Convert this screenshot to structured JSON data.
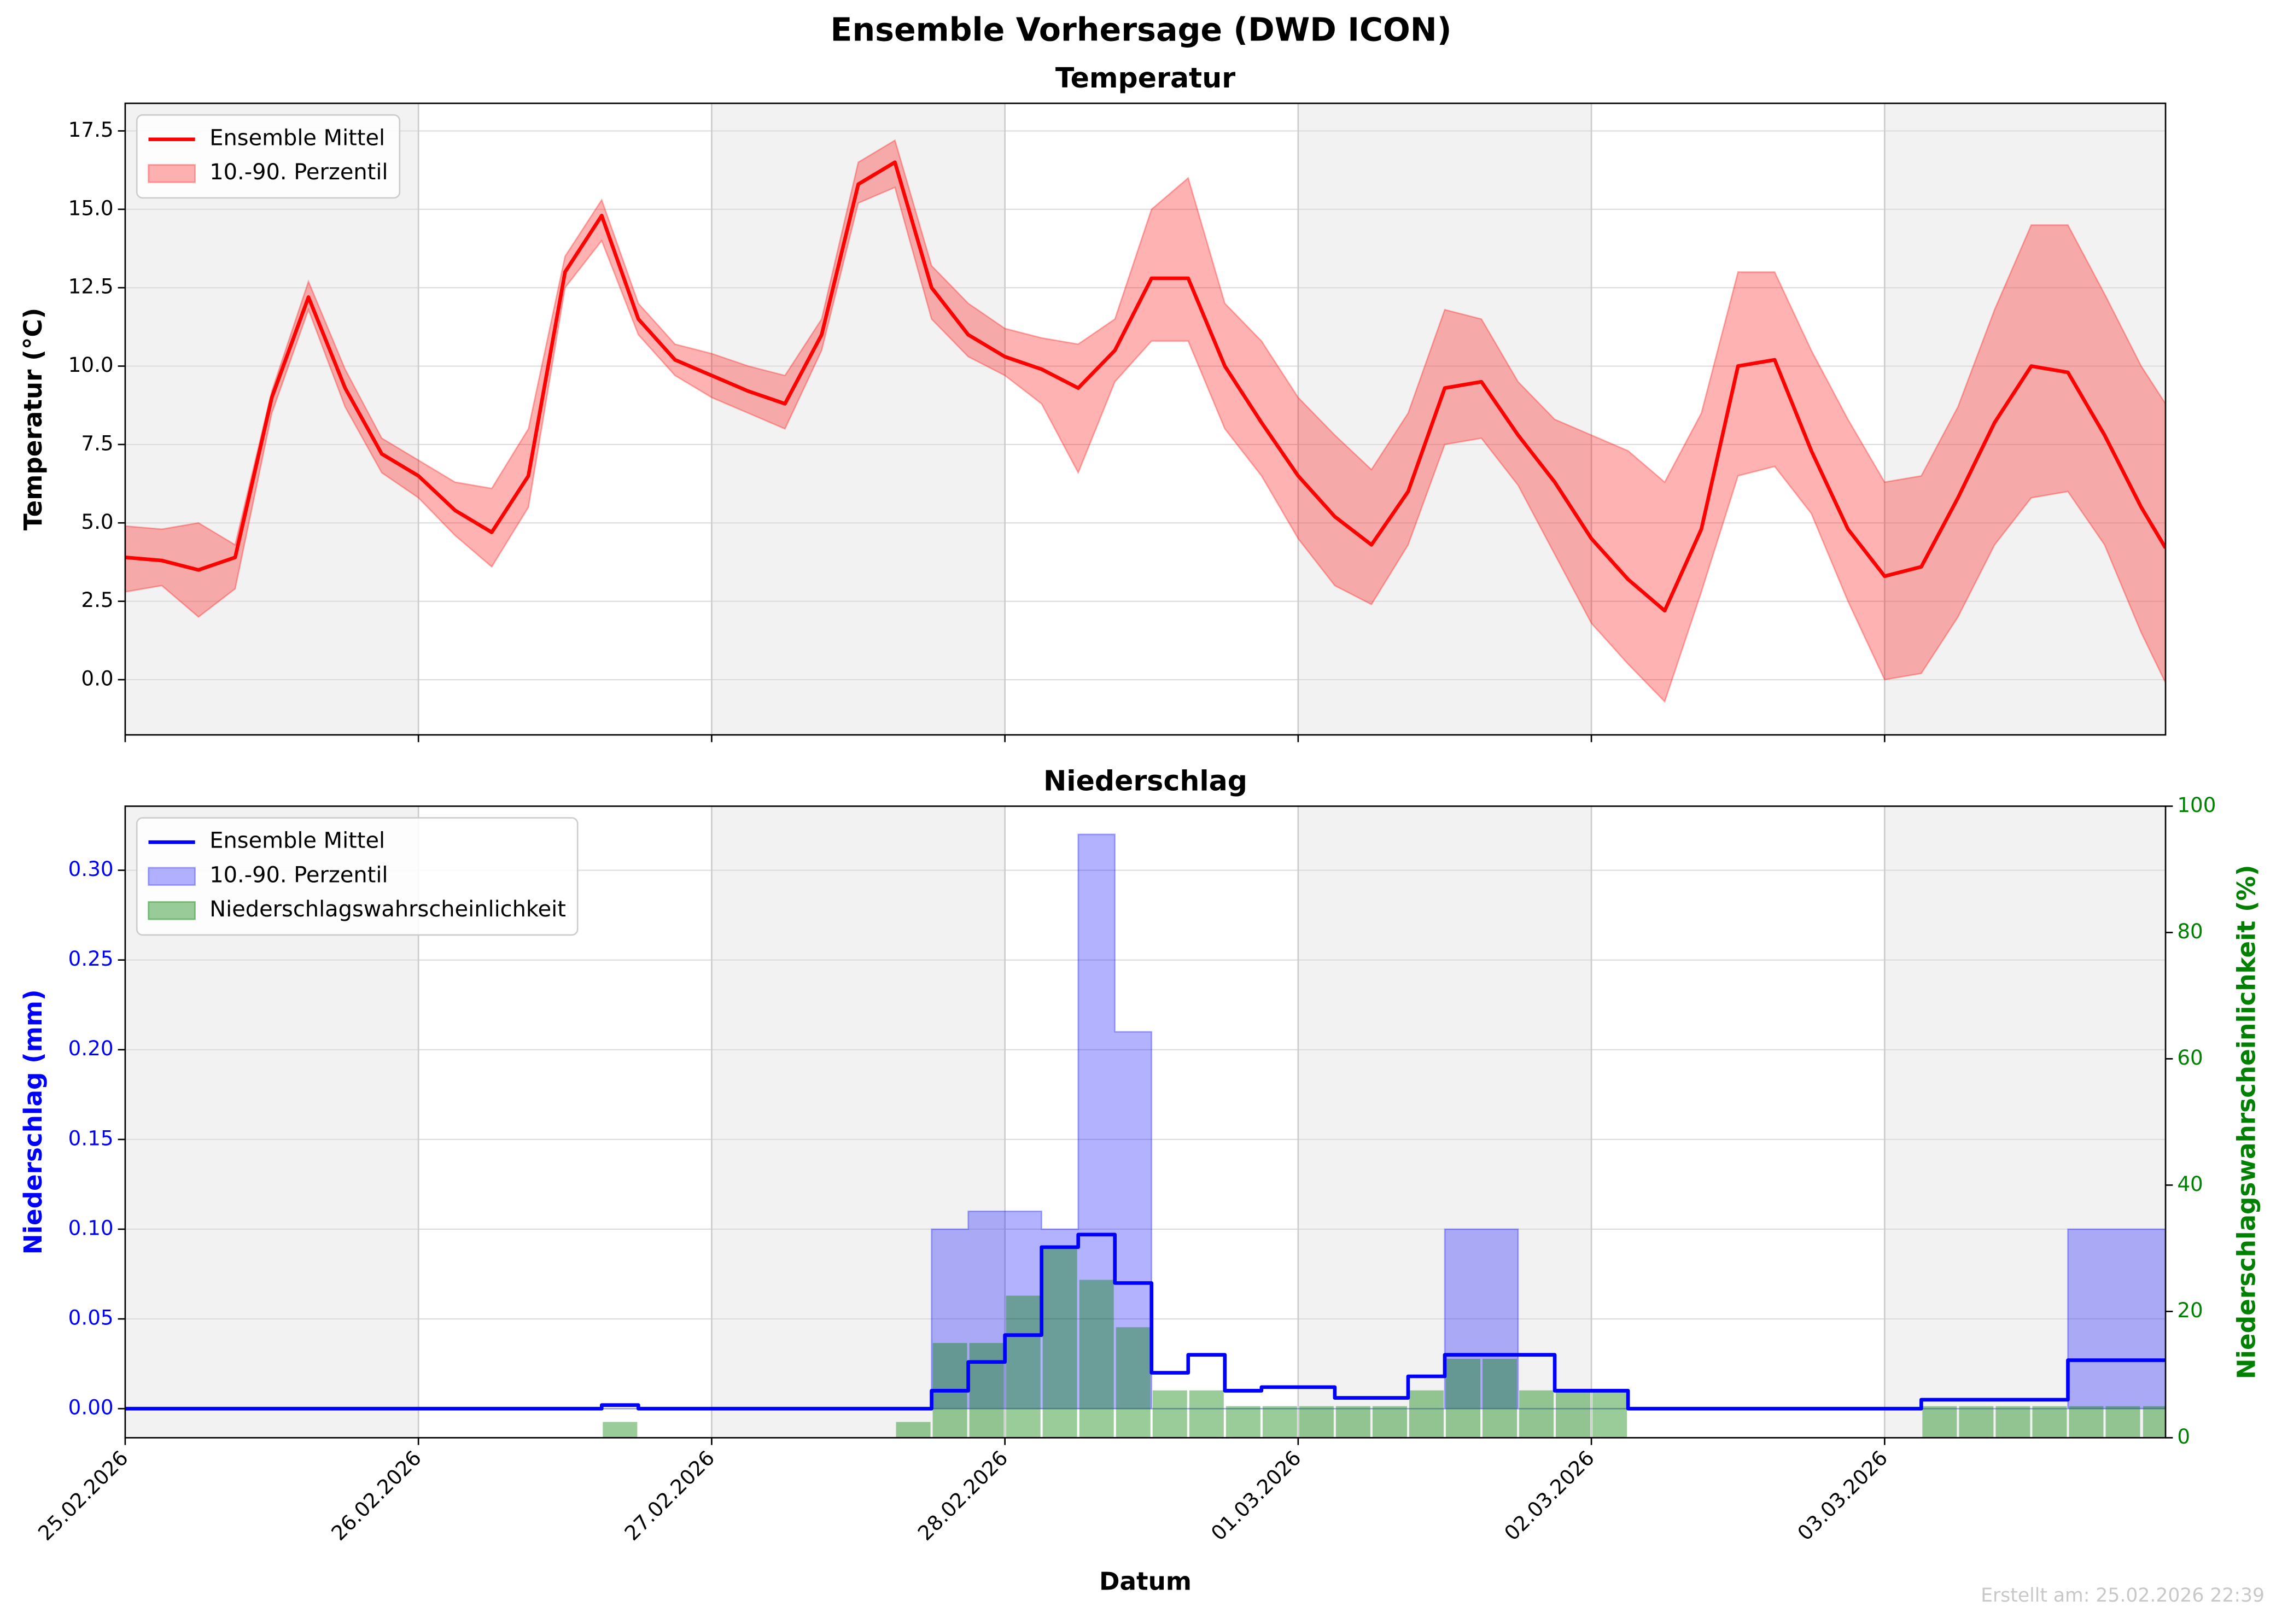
{
  "title": "Ensemble Vorhersage (DWD ICON)",
  "footer": "Erstellt am: 25.02.2026 22:39",
  "chart_data": [
    {
      "type": "line",
      "title": "Temperatur",
      "ylabel": "Temperatur (°C)",
      "legend": "upper left",
      "x": [
        0,
        0.125,
        0.25,
        0.375,
        0.5,
        0.625,
        0.75,
        0.875,
        1,
        1.125,
        1.25,
        1.375,
        1.5,
        1.625,
        1.75,
        1.875,
        2,
        2.125,
        2.25,
        2.375,
        2.5,
        2.625,
        2.75,
        2.875,
        3,
        3.125,
        3.25,
        3.375,
        3.5,
        3.625,
        3.75,
        3.875,
        4,
        4.125,
        4.25,
        4.375,
        4.5,
        4.625,
        4.75,
        4.875,
        5,
        5.125,
        5.25,
        5.375,
        5.5,
        5.625,
        5.75,
        5.875,
        6,
        6.125,
        6.25,
        6.375,
        6.5,
        6.625,
        6.75,
        6.875,
        6.958
      ],
      "xlim": [
        0,
        6.958
      ],
      "xticks": [
        {
          "value": 0,
          "label": "25.02.2026"
        },
        {
          "value": 1,
          "label": "26.02.2026"
        },
        {
          "value": 2,
          "label": "27.02.2026"
        },
        {
          "value": 3,
          "label": "28.02.2026"
        },
        {
          "value": 4,
          "label": "01.03.2026"
        },
        {
          "value": 5,
          "label": "02.03.2026"
        },
        {
          "value": 6,
          "label": "03.03.2026"
        }
      ],
      "show_xtick_labels": false,
      "ylim": [
        -1.76,
        18.38
      ],
      "yticks": [
        {
          "value": 0,
          "label": "0.0"
        },
        2.5,
        {
          "value": 5,
          "label": "5.0"
        },
        7.5,
        {
          "value": 10,
          "label": "10.0"
        },
        12.5,
        {
          "value": 15,
          "label": "15.0"
        },
        17.5
      ],
      "grid": true,
      "series": [
        {
          "name": "Ensemble Mittel",
          "kind": "line",
          "color": "#ff0000",
          "values": [
            3.9,
            3.8,
            3.5,
            3.9,
            9.0,
            12.2,
            9.3,
            7.2,
            6.5,
            5.4,
            4.7,
            6.5,
            13.0,
            14.8,
            11.5,
            10.2,
            9.7,
            9.2,
            8.8,
            11.0,
            15.8,
            16.5,
            12.5,
            11.0,
            10.3,
            9.9,
            9.3,
            10.5,
            12.8,
            12.8,
            10.0,
            8.2,
            6.5,
            5.2,
            4.3,
            6.0,
            9.3,
            9.5,
            7.8,
            6.3,
            4.5,
            3.2,
            2.2,
            4.8,
            10.0,
            10.2,
            7.3,
            4.8,
            3.3,
            3.6,
            5.8,
            8.2,
            10.0,
            9.8,
            7.8,
            5.5,
            4.2
          ]
        },
        {
          "name": "10.-90. Perzentil",
          "kind": "band",
          "color": "#ff0000",
          "alpha": 0.3,
          "lower": [
            2.8,
            3.0,
            2.0,
            2.9,
            8.5,
            11.8,
            8.7,
            6.6,
            5.8,
            4.6,
            3.6,
            5.5,
            12.5,
            14.0,
            11.0,
            9.7,
            9.0,
            8.5,
            8.0,
            10.5,
            15.2,
            15.7,
            11.5,
            10.3,
            9.7,
            8.8,
            6.6,
            9.5,
            10.8,
            10.8,
            8.0,
            6.5,
            4.5,
            3.0,
            2.4,
            4.3,
            7.5,
            7.7,
            6.2,
            4.0,
            1.8,
            0.5,
            -0.7,
            2.8,
            6.5,
            6.8,
            5.3,
            2.5,
            0.0,
            0.2,
            2.0,
            4.3,
            5.8,
            6.0,
            4.3,
            1.5,
            -0.1
          ],
          "upper": [
            4.9,
            4.8,
            5.0,
            4.3,
            9.2,
            12.7,
            9.9,
            7.7,
            7.0,
            6.3,
            6.1,
            8.0,
            13.5,
            15.3,
            12.0,
            10.7,
            10.4,
            10.0,
            9.7,
            11.5,
            16.5,
            17.2,
            13.2,
            12.0,
            11.2,
            10.9,
            10.7,
            11.5,
            15.0,
            16.0,
            12.0,
            10.8,
            9.0,
            7.8,
            6.7,
            8.5,
            11.8,
            11.5,
            9.5,
            8.3,
            7.8,
            7.3,
            6.3,
            8.5,
            13.0,
            13.0,
            10.5,
            8.3,
            6.3,
            6.5,
            8.7,
            11.8,
            14.5,
            14.5,
            12.3,
            10.0,
            8.8
          ]
        }
      ]
    },
    {
      "type": "step",
      "title": "Niederschlag",
      "ylabel": "Niederschlag (mm)",
      "y2label": "Niederschlagswahrscheinlichkeit (%)",
      "xlabel": "Datum",
      "legend": "upper left",
      "ycolor": "#0000ff",
      "y2color": "#008000",
      "x": [
        0,
        0.125,
        0.25,
        0.375,
        0.5,
        0.625,
        0.75,
        0.875,
        1,
        1.125,
        1.25,
        1.375,
        1.5,
        1.625,
        1.75,
        1.875,
        2,
        2.125,
        2.25,
        2.375,
        2.5,
        2.625,
        2.75,
        2.875,
        3,
        3.125,
        3.25,
        3.375,
        3.5,
        3.625,
        3.75,
        3.875,
        4,
        4.125,
        4.25,
        4.375,
        4.5,
        4.625,
        4.75,
        4.875,
        5,
        5.125,
        5.25,
        5.375,
        5.5,
        5.625,
        5.75,
        5.875,
        6,
        6.125,
        6.25,
        6.375,
        6.5,
        6.625,
        6.75,
        6.875
      ],
      "xlim": [
        0,
        6.958
      ],
      "xticks": [
        {
          "value": 0,
          "label": "25.02.2026"
        },
        {
          "value": 1,
          "label": "26.02.2026"
        },
        {
          "value": 2,
          "label": "27.02.2026"
        },
        {
          "value": 3,
          "label": "28.02.2026"
        },
        {
          "value": 4,
          "label": "01.03.2026"
        },
        {
          "value": 5,
          "label": "02.03.2026"
        },
        {
          "value": 6,
          "label": "03.03.2026"
        }
      ],
      "show_xtick_labels": true,
      "ylim": [
        -0.0162,
        0.3357
      ],
      "yticks": [
        {
          "value": 0,
          "label": "0.00"
        },
        {
          "value": 0.05,
          "label": "0.05"
        },
        {
          "value": 0.1,
          "label": "0.10"
        },
        {
          "value": 0.15,
          "label": "0.15"
        },
        {
          "value": 0.2,
          "label": "0.20"
        },
        {
          "value": 0.25,
          "label": "0.25"
        },
        {
          "value": 0.3,
          "label": "0.30"
        }
      ],
      "y2lim": [
        0,
        100
      ],
      "y2ticks": [
        0,
        20,
        40,
        60,
        80,
        100
      ],
      "grid": true,
      "series": [
        {
          "name": "Ensemble Mittel",
          "kind": "step",
          "color": "#0000ff",
          "values": [
            0,
            0,
            0,
            0,
            0,
            0,
            0,
            0,
            0,
            0,
            0,
            0,
            0,
            0.002,
            0,
            0,
            0,
            0,
            0,
            0,
            0,
            0,
            0.01,
            0.026,
            0.041,
            0.09,
            0.097,
            0.07,
            0.02,
            0.03,
            0.01,
            0.012,
            0.012,
            0.006,
            0.006,
            0.018,
            0.03,
            0.03,
            0.03,
            0.01,
            0.01,
            0,
            0,
            0,
            0,
            0,
            0,
            0,
            0,
            0.005,
            0.005,
            0.005,
            0.005,
            0.027,
            0.027,
            0.027
          ]
        },
        {
          "name": "10.-90. Perzentil",
          "kind": "stepband",
          "color": "#0000ff",
          "alpha": 0.3,
          "lower": [
            0,
            0,
            0,
            0,
            0,
            0,
            0,
            0,
            0,
            0,
            0,
            0,
            0,
            0,
            0,
            0,
            0,
            0,
            0,
            0,
            0,
            0,
            0,
            0,
            0,
            0,
            0,
            0,
            0,
            0,
            0,
            0,
            0,
            0,
            0,
            0,
            0,
            0,
            0,
            0,
            0,
            0,
            0,
            0,
            0,
            0,
            0,
            0,
            0,
            0,
            0,
            0,
            0,
            0,
            0,
            0
          ],
          "upper": [
            0,
            0,
            0,
            0,
            0,
            0,
            0,
            0,
            0,
            0,
            0,
            0,
            0,
            0,
            0,
            0,
            0,
            0,
            0,
            0,
            0,
            0,
            0.1,
            0.11,
            0.11,
            0.1,
            0.32,
            0.21,
            0,
            0,
            0,
            0,
            0,
            0,
            0,
            0,
            0.1,
            0.1,
            0,
            0,
            0,
            0,
            0,
            0,
            0,
            0,
            0,
            0,
            0,
            0,
            0,
            0,
            0,
            0.1,
            0.1,
            0.1
          ]
        },
        {
          "name": "Niederschlagswahrscheinlichkeit",
          "kind": "bar",
          "axis": "y2",
          "color": "#008000",
          "alpha": 0.4,
          "values": [
            0,
            0,
            0,
            0,
            0,
            0,
            0,
            0,
            0,
            0,
            0,
            0,
            0,
            2.5,
            0,
            0,
            0,
            0,
            0,
            0,
            0,
            2.5,
            15,
            15,
            22.5,
            30,
            25,
            17.5,
            7.5,
            7.5,
            5,
            5,
            5,
            5,
            5,
            7.5,
            12.5,
            12.5,
            7.5,
            7.5,
            7.5,
            0,
            0,
            0,
            0,
            0,
            0,
            0,
            0,
            5,
            5,
            5,
            5,
            5,
            5,
            5
          ]
        }
      ]
    }
  ]
}
